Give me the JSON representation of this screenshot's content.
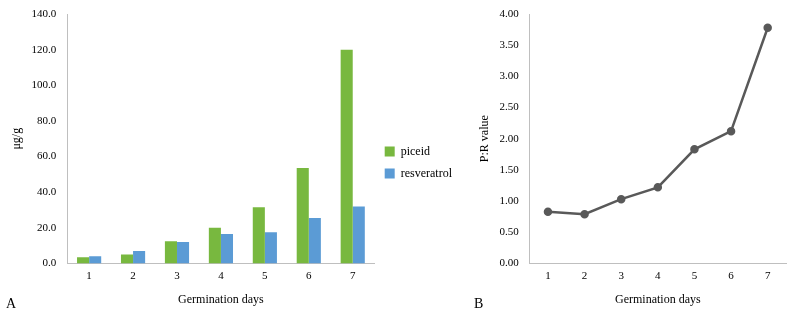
{
  "chart_data": [
    {
      "type": "bar",
      "annotation": "A",
      "x_label": "Germination days",
      "y_label": "μg/g",
      "categories": [
        "1",
        "2",
        "3",
        "4",
        "5",
        "6",
        "7"
      ],
      "series": [
        {
          "name": "piceid",
          "color": "#78b83f",
          "values": [
            3.5,
            5.0,
            12.5,
            20.0,
            31.5,
            53.5,
            120.0
          ]
        },
        {
          "name": "resveratrol",
          "color": "#5b9bd5",
          "values": [
            4.0,
            7.0,
            12.0,
            16.5,
            17.5,
            25.5,
            32.0
          ]
        }
      ],
      "ylim": [
        0,
        140
      ],
      "yticks": [
        {
          "value": 0,
          "label": "0.0"
        },
        {
          "value": 20,
          "label": "20.0"
        },
        {
          "value": 40,
          "label": "40.0"
        },
        {
          "value": 60,
          "label": "60.0"
        },
        {
          "value": 80,
          "label": "80.0"
        },
        {
          "value": 100,
          "label": "100.0"
        },
        {
          "value": 120,
          "label": "120.0"
        },
        {
          "value": 140,
          "label": "140.0"
        }
      ],
      "grid": false,
      "legend": "right"
    },
    {
      "type": "line",
      "annotation": "B",
      "x_label": "Germination days",
      "y_label": "P:R value",
      "categories": [
        "1",
        "2",
        "3",
        "4",
        "5",
        "6",
        "7"
      ],
      "values": [
        0.83,
        0.79,
        1.03,
        1.22,
        1.83,
        2.12,
        3.78
      ],
      "color": "#595959",
      "marker": "circle",
      "line_style": "solid",
      "ylim": [
        0,
        4
      ],
      "yticks": [
        {
          "value": 0,
          "label": "0.00"
        },
        {
          "value": 0.5,
          "label": "0.50"
        },
        {
          "value": 1,
          "label": "1.00"
        },
        {
          "value": 1.5,
          "label": "1.50"
        },
        {
          "value": 2,
          "label": "2.00"
        },
        {
          "value": 2.5,
          "label": "2.50"
        },
        {
          "value": 3,
          "label": "3.00"
        },
        {
          "value": 3.5,
          "label": "3.50"
        },
        {
          "value": 4,
          "label": "4.00"
        }
      ],
      "grid": false
    }
  ]
}
